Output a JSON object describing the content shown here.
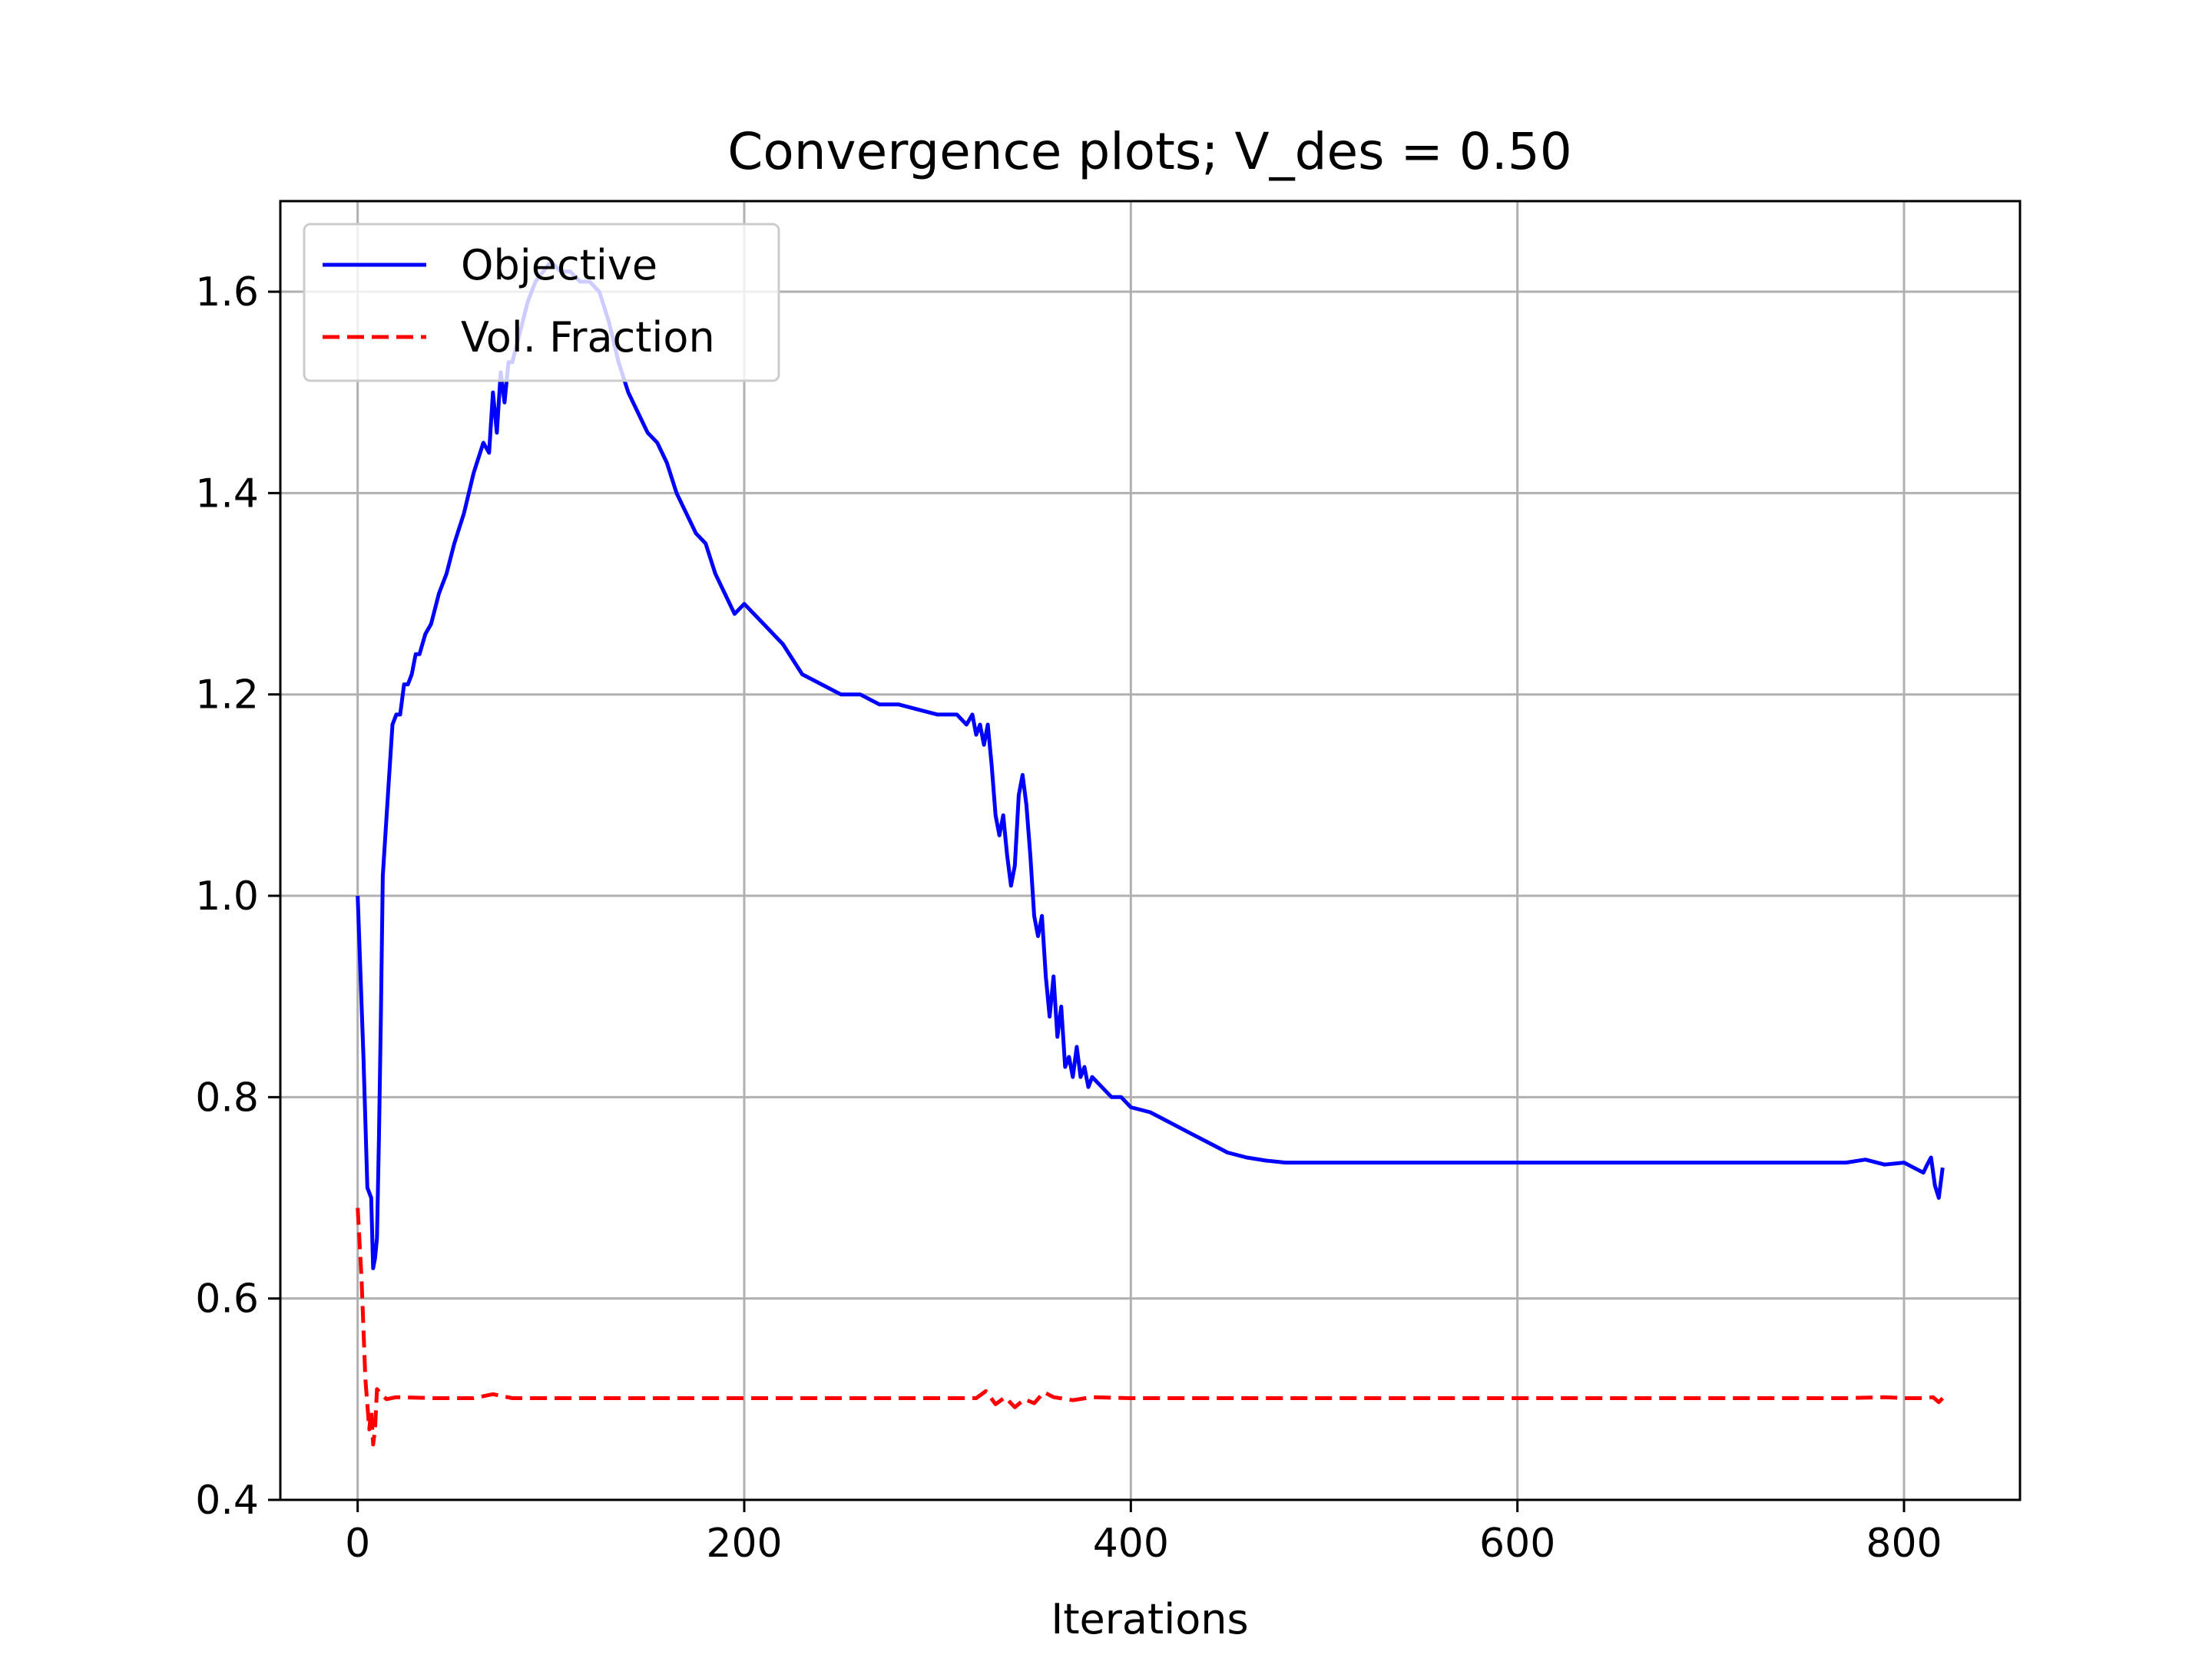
{
  "chart_data": {
    "type": "line",
    "title": "Convergence plots; V_des = 0.50",
    "xlabel": "Iterations",
    "ylabel": "",
    "xlim": [
      -40,
      860
    ],
    "ylim": [
      0.4,
      1.69
    ],
    "xticks": [
      0,
      200,
      400,
      600,
      800
    ],
    "yticks": [
      0.4,
      0.6,
      0.8,
      1.0,
      1.2,
      1.4,
      1.6
    ],
    "xtick_labels": [
      "0",
      "200",
      "400",
      "600",
      "800"
    ],
    "ytick_labels": [
      "0.4",
      "0.6",
      "0.8",
      "1.0",
      "1.2",
      "1.4",
      "1.6"
    ],
    "grid": true,
    "legend_position": "top-left",
    "series": [
      {
        "name": "Objective",
        "color": "#0000ff",
        "style": "solid",
        "x": [
          0,
          3,
          5,
          7,
          8,
          9,
          10,
          11,
          12,
          13,
          14,
          16,
          18,
          20,
          22,
          24,
          26,
          28,
          30,
          32,
          35,
          38,
          42,
          46,
          50,
          55,
          60,
          65,
          68,
          70,
          72,
          74,
          76,
          78,
          80,
          84,
          88,
          92,
          96,
          100,
          105,
          110,
          115,
          120,
          125,
          130,
          135,
          140,
          145,
          150,
          155,
          160,
          165,
          170,
          175,
          180,
          185,
          190,
          195,
          200,
          210,
          220,
          230,
          240,
          250,
          260,
          270,
          280,
          290,
          300,
          310,
          315,
          318,
          320,
          322,
          324,
          326,
          328,
          330,
          332,
          334,
          336,
          338,
          340,
          342,
          344,
          346,
          348,
          350,
          352,
          354,
          356,
          358,
          360,
          362,
          364,
          366,
          368,
          370,
          372,
          374,
          376,
          378,
          380,
          385,
          390,
          395,
          400,
          410,
          420,
          430,
          440,
          450,
          460,
          470,
          480,
          490,
          500,
          550,
          600,
          650,
          700,
          750,
          770,
          780,
          790,
          800,
          805,
          810,
          812,
          814,
          816,
          818,
          820
        ],
        "values": [
          1.0,
          0.84,
          0.71,
          0.7,
          0.63,
          0.64,
          0.66,
          0.76,
          0.88,
          1.02,
          1.05,
          1.11,
          1.17,
          1.18,
          1.18,
          1.21,
          1.21,
          1.22,
          1.24,
          1.24,
          1.26,
          1.27,
          1.3,
          1.32,
          1.35,
          1.38,
          1.42,
          1.45,
          1.44,
          1.5,
          1.46,
          1.52,
          1.49,
          1.53,
          1.53,
          1.56,
          1.59,
          1.61,
          1.62,
          1.63,
          1.62,
          1.62,
          1.61,
          1.61,
          1.6,
          1.57,
          1.53,
          1.5,
          1.48,
          1.46,
          1.45,
          1.43,
          1.4,
          1.38,
          1.36,
          1.35,
          1.32,
          1.3,
          1.28,
          1.29,
          1.27,
          1.25,
          1.22,
          1.21,
          1.2,
          1.2,
          1.19,
          1.19,
          1.185,
          1.18,
          1.18,
          1.17,
          1.18,
          1.16,
          1.17,
          1.15,
          1.17,
          1.13,
          1.08,
          1.06,
          1.08,
          1.04,
          1.01,
          1.03,
          1.1,
          1.12,
          1.09,
          1.04,
          0.98,
          0.96,
          0.98,
          0.92,
          0.88,
          0.92,
          0.86,
          0.89,
          0.83,
          0.84,
          0.82,
          0.85,
          0.82,
          0.83,
          0.81,
          0.82,
          0.81,
          0.8,
          0.8,
          0.79,
          0.785,
          0.775,
          0.765,
          0.755,
          0.745,
          0.74,
          0.737,
          0.735,
          0.735,
          0.735,
          0.735,
          0.735,
          0.735,
          0.735,
          0.735,
          0.735,
          0.738,
          0.733,
          0.735,
          0.73,
          0.725,
          0.733,
          0.74,
          0.712,
          0.7,
          0.73
        ]
      },
      {
        "name": "Vol. Fraction",
        "color": "#ff0000",
        "style": "dashed",
        "x": [
          0,
          2,
          4,
          6,
          7,
          8,
          9,
          10,
          12,
          15,
          20,
          40,
          60,
          70,
          75,
          80,
          100,
          150,
          200,
          250,
          300,
          320,
          325,
          330,
          335,
          340,
          345,
          350,
          355,
          360,
          370,
          380,
          400,
          450,
          500,
          600,
          700,
          770,
          790,
          800,
          810,
          815,
          818,
          820
        ],
        "values": [
          0.69,
          0.62,
          0.52,
          0.47,
          0.49,
          0.455,
          0.47,
          0.51,
          0.505,
          0.5,
          0.502,
          0.501,
          0.501,
          0.505,
          0.503,
          0.501,
          0.501,
          0.501,
          0.501,
          0.501,
          0.501,
          0.501,
          0.508,
          0.495,
          0.502,
          0.492,
          0.5,
          0.496,
          0.507,
          0.502,
          0.499,
          0.502,
          0.501,
          0.501,
          0.501,
          0.501,
          0.501,
          0.501,
          0.502,
          0.501,
          0.501,
          0.502,
          0.497,
          0.501
        ]
      }
    ]
  }
}
